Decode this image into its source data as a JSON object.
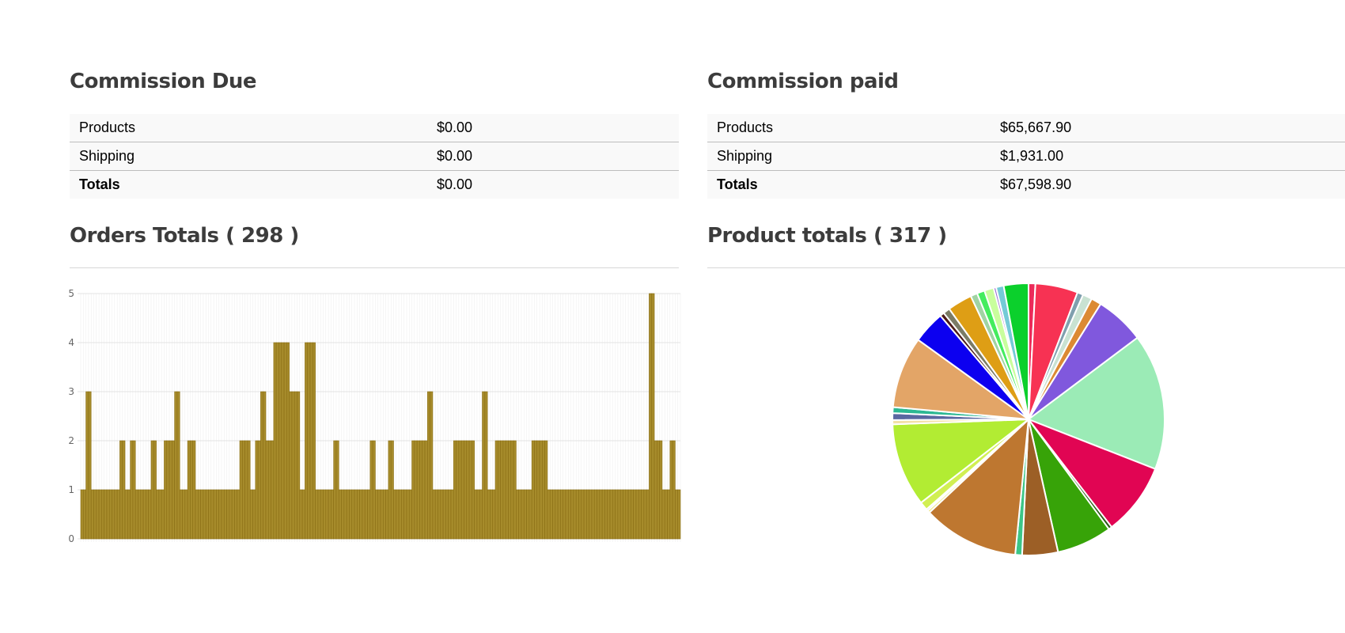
{
  "commission_due": {
    "title": "Commission Due",
    "rows": [
      {
        "label": "Products",
        "value": "$0.00"
      },
      {
        "label": "Shipping",
        "value": "$0.00"
      },
      {
        "label": "Totals",
        "value": "$0.00"
      }
    ]
  },
  "commission_paid": {
    "title": "Commission paid",
    "rows": [
      {
        "label": "Products",
        "value": "$65,667.90"
      },
      {
        "label": "Shipping",
        "value": "$1,931.00"
      },
      {
        "label": "Totals",
        "value": "$67,598.90"
      }
    ]
  },
  "orders_totals": {
    "title": "Orders Totals ( 298 )"
  },
  "product_totals": {
    "title": "Product totals ( 317 )"
  },
  "chart_data": [
    {
      "type": "bar",
      "xlabel": "",
      "ylabel": "",
      "ylim": [
        0,
        5
      ],
      "yticks": [
        0,
        1,
        2,
        3,
        4,
        5
      ],
      "grid": true,
      "colors": {
        "fill": "#a68b2b",
        "stroke": "#8a6e14"
      },
      "values": [
        1,
        1,
        3,
        3,
        1,
        1,
        1,
        1,
        1,
        1,
        1,
        1,
        1,
        1,
        1,
        2,
        2,
        1,
        1,
        2,
        2,
        1,
        1,
        1,
        1,
        1,
        1,
        2,
        2,
        1,
        1,
        1,
        2,
        2,
        2,
        2,
        3,
        3,
        1,
        1,
        1,
        2,
        2,
        2,
        1,
        1,
        1,
        1,
        1,
        1,
        1,
        1,
        1,
        1,
        1,
        1,
        1,
        1,
        1,
        1,
        1,
        2,
        2,
        2,
        2,
        1,
        1,
        2,
        2,
        3,
        3,
        2,
        2,
        2,
        4,
        4,
        4,
        4,
        4,
        4,
        3,
        3,
        3,
        3,
        1,
        1,
        4,
        4,
        4,
        4,
        1,
        1,
        1,
        1,
        1,
        1,
        1,
        2,
        2,
        1,
        1,
        1,
        1,
        1,
        1,
        1,
        1,
        1,
        1,
        1,
        1,
        2,
        2,
        1,
        1,
        1,
        1,
        1,
        2,
        2,
        1,
        1,
        1,
        1,
        1,
        1,
        1,
        2,
        2,
        2,
        2,
        2,
        2,
        3,
        3,
        1,
        1,
        1,
        1,
        1,
        1,
        1,
        1,
        2,
        2,
        2,
        2,
        2,
        2,
        2,
        2,
        1,
        1,
        1,
        3,
        3,
        1,
        1,
        1,
        2,
        2,
        2,
        2,
        2,
        2,
        2,
        2,
        1,
        1,
        1,
        1,
        1,
        1,
        2,
        2,
        2,
        2,
        2,
        2,
        1,
        1,
        1,
        1,
        1,
        1,
        1,
        1,
        1,
        1,
        1,
        1,
        1,
        1,
        1,
        1,
        1,
        1,
        1,
        1,
        1,
        1,
        1,
        1,
        1,
        1,
        1,
        1,
        1,
        1,
        1,
        1,
        1,
        1,
        1,
        1,
        1,
        1,
        1,
        5,
        5,
        2,
        2,
        2,
        1,
        1,
        1,
        2,
        2,
        1,
        1
      ]
    },
    {
      "type": "pie",
      "legend": false,
      "slices": [
        {
          "value": 0.8,
          "color": "#ec2b5a"
        },
        {
          "value": 5.0,
          "color": "#f73253"
        },
        {
          "value": 0.7,
          "color": "#7f9fae"
        },
        {
          "value": 1.1,
          "color": "#c9e2d2"
        },
        {
          "value": 1.2,
          "color": "#dc8a33"
        },
        {
          "value": 5.8,
          "color": "#8058dd"
        },
        {
          "value": 16.0,
          "color": "#9bebb6"
        },
        {
          "value": 8.5,
          "color": "#e10553"
        },
        {
          "value": 0.4,
          "color": "#2d5c18"
        },
        {
          "value": 6.5,
          "color": "#37a308"
        },
        {
          "value": 4.2,
          "color": "#9c5f26"
        },
        {
          "value": 0.8,
          "color": "#3cc687"
        },
        {
          "value": 11.3,
          "color": "#be7730"
        },
        {
          "value": 0.3,
          "color": "#f0e88a"
        },
        {
          "value": 0.2,
          "color": "#5a7a8c"
        },
        {
          "value": 1.0,
          "color": "#d1ef52"
        },
        {
          "value": 9.8,
          "color": "#b2ec33"
        },
        {
          "value": 0.5,
          "color": "#f3e1a7"
        },
        {
          "value": 0.8,
          "color": "#5a67a1"
        },
        {
          "value": 0.7,
          "color": "#2cb893"
        },
        {
          "value": 8.4,
          "color": "#e3a567"
        },
        {
          "value": 3.8,
          "color": "#0c00f0"
        },
        {
          "value": 0.5,
          "color": "#4e1c1a"
        },
        {
          "value": 0.8,
          "color": "#7b7b66"
        },
        {
          "value": 2.9,
          "color": "#de9e15"
        },
        {
          "value": 0.8,
          "color": "#a0d3a3"
        },
        {
          "value": 0.9,
          "color": "#44ec5e"
        },
        {
          "value": 1.1,
          "color": "#c9fe9d"
        },
        {
          "value": 0.3,
          "color": "#9b6bd5"
        },
        {
          "value": 0.9,
          "color": "#74cad7"
        },
        {
          "value": 2.9,
          "color": "#0bd02c"
        }
      ]
    }
  ]
}
